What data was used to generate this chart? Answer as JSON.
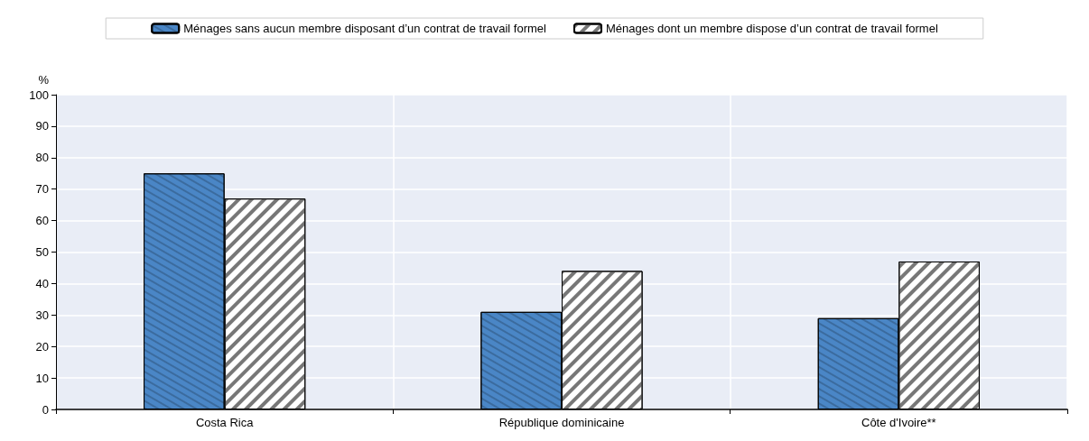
{
  "chart_data": {
    "type": "bar",
    "ylabel": "%",
    "categories": [
      "Costa Rica",
      "République dominicaine",
      "Côte d'Ivoire**"
    ],
    "series": [
      {
        "name": "Ménages sans aucun membre disposant d’un contrat de travail formel",
        "color": "#4a86c6",
        "values": [
          75,
          31,
          29
        ]
      },
      {
        "name": "Ménages dont un membre dispose d’un contrat de travail formel",
        "color": "#ffffff",
        "values": [
          67,
          44,
          47
        ]
      }
    ],
    "ylim": [
      0,
      100
    ],
    "yticks": [
      0,
      10,
      20,
      30,
      40,
      50,
      60,
      70,
      80,
      90,
      100
    ],
    "grid": true,
    "legend": "top"
  }
}
